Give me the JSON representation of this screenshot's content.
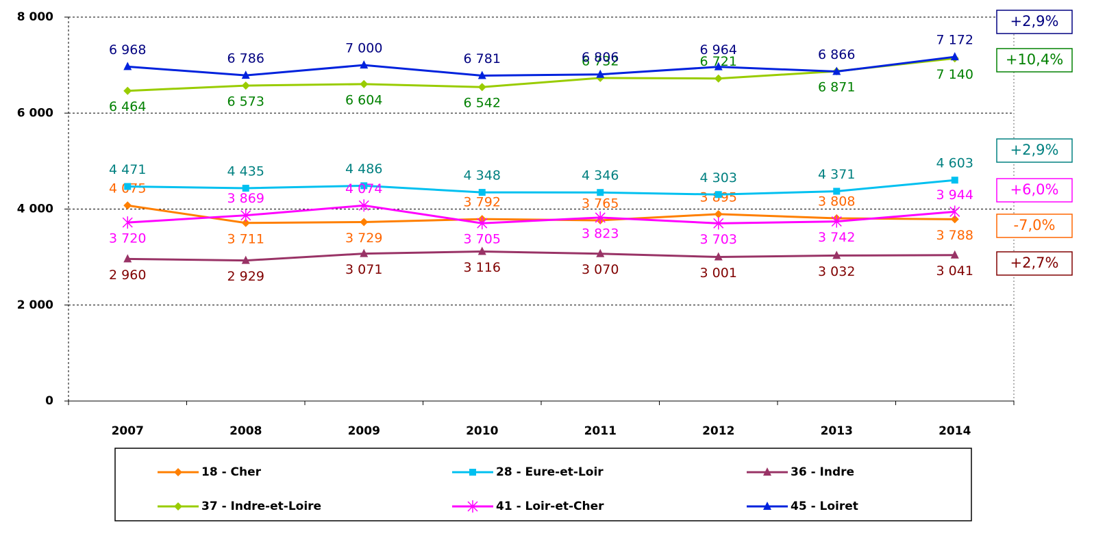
{
  "chart_data": {
    "type": "line",
    "categories": [
      "2007",
      "2008",
      "2009",
      "2010",
      "2011",
      "2012",
      "2013",
      "2014"
    ],
    "ylim": [
      0,
      8000
    ],
    "yticks": [
      0,
      {
        "value": 2000,
        "label": "2 000"
      },
      {
        "value": 4000,
        "label": "4 000"
      },
      {
        "value": 6000,
        "label": "6 000"
      },
      {
        "value": 8000,
        "label": "8 000"
      }
    ],
    "grid": true,
    "series": [
      {
        "name": "18 - Cher",
        "color": "#ff7f00",
        "label_color": "#ff6600",
        "marker": "diamond",
        "annotation": "-7,0%",
        "values": [
          4075,
          3711,
          3729,
          3792,
          3765,
          3895,
          3808,
          3788
        ],
        "value_labels": [
          "4 075",
          "3 711",
          "3 729",
          "3 792",
          "3 765",
          "3 895",
          "3 808",
          "3 788"
        ]
      },
      {
        "name": "28 - Eure-et-Loir",
        "color": "#00c0f0",
        "label_color": "#008080",
        "marker": "square",
        "annotation": "+2,9%",
        "values": [
          4471,
          4435,
          4486,
          4348,
          4346,
          4303,
          4371,
          4603
        ],
        "value_labels": [
          "4 471",
          "4 435",
          "4 486",
          "4 348",
          "4 346",
          "4 303",
          "4 371",
          "4 603"
        ]
      },
      {
        "name": "36 - Indre",
        "color": "#993366",
        "label_color": "#800000",
        "marker": "triangle",
        "annotation": "+2,7%",
        "values": [
          2960,
          2929,
          3071,
          3116,
          3070,
          3001,
          3032,
          3041
        ],
        "value_labels": [
          "2 960",
          "2 929",
          "3 071",
          "3 116",
          "3 070",
          "3 001",
          "3 032",
          "3 041"
        ]
      },
      {
        "name": "37 - Indre-et-Loire",
        "color": "#99cc00",
        "label_color": "#008000",
        "marker": "diamond",
        "annotation": "+10,4%",
        "values": [
          6464,
          6573,
          6604,
          6542,
          6732,
          6721,
          6871,
          7140
        ],
        "value_labels": [
          "6 464",
          "6 573",
          "6 604",
          "6 542",
          "6 732",
          "6 721",
          "6 871",
          "7 140"
        ]
      },
      {
        "name": "41 - Loir-et-Cher",
        "color": "#ff00ff",
        "label_color": "#ff00ff",
        "marker": "star",
        "annotation": "+6,0%",
        "values": [
          3720,
          3869,
          4074,
          3705,
          3823,
          3703,
          3742,
          3944
        ],
        "value_labels": [
          "3 720",
          "3 869",
          "4 074",
          "3 705",
          "3 823",
          "3 703",
          "3 742",
          "3 944"
        ]
      },
      {
        "name": "45 - Loiret",
        "color": "#0022dd",
        "label_color": "#000080",
        "marker": "triangle",
        "annotation": "+2,9%",
        "values": [
          6968,
          6786,
          7000,
          6781,
          6806,
          6964,
          6866,
          7172
        ],
        "value_labels": [
          "6 968",
          "6 786",
          "7 000",
          "6 781",
          "6 806",
          "6 964",
          "6 866",
          "7 172"
        ]
      }
    ]
  }
}
